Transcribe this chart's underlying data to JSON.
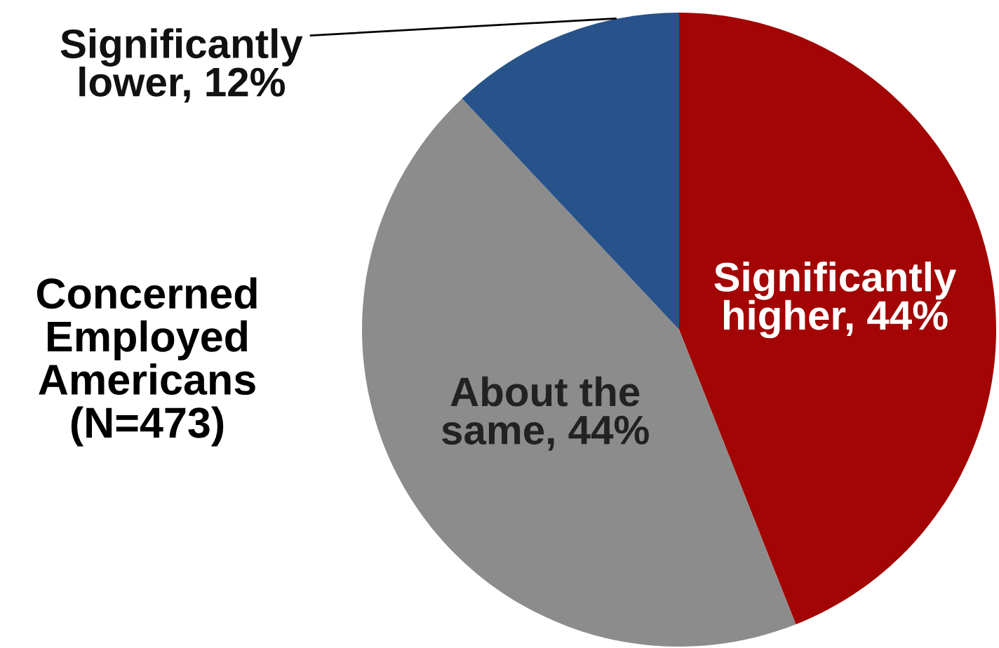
{
  "chart_data": {
    "type": "pie",
    "title": "Concerned\nEmployed\nAmericans\n(N=473)",
    "categories": [
      "Significantly\nhigher",
      "About the\nsame",
      "Significantly\nlower"
    ],
    "values": [
      44,
      44,
      12
    ],
    "value_labels": [
      "44%",
      "44%",
      "12%"
    ],
    "colors": [
      "#a30404",
      "#8c8c8c",
      "#28528a"
    ],
    "legend": false
  }
}
